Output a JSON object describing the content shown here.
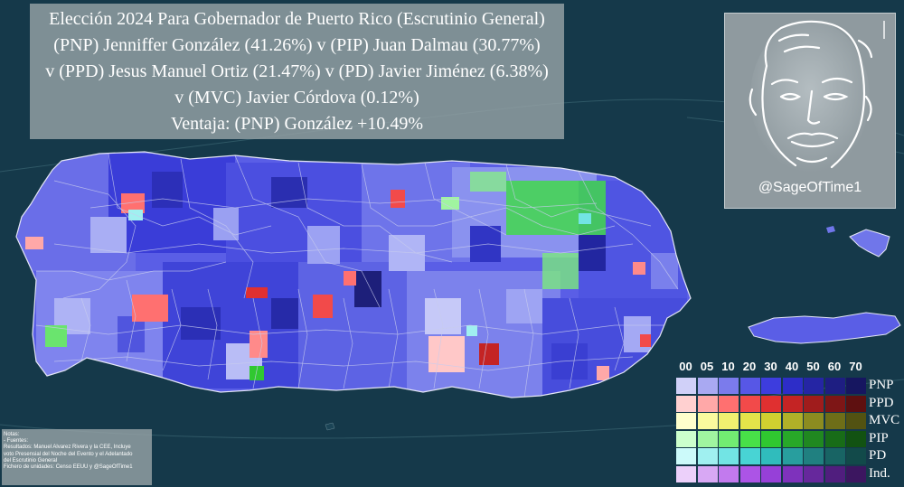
{
  "title": {
    "line1": "Elección 2024 Para Gobernador de Puerto Rico (Escrutinio General)",
    "line2": "(PNP) Jenniffer González (41.26%) v (PIP) Juan Dalmau (30.77%)",
    "line3": "v (PPD) Jesus Manuel Ortiz (21.47%) v (PD) Javier Jiménez (6.38%)",
    "line4": "v (MVC) Javier Córdova (0.12%)",
    "line5": "Ventaja: (PNP) González +10.49%"
  },
  "candidates": [
    {
      "party": "PNP",
      "name": "Jenniffer González",
      "percent": 41.26
    },
    {
      "party": "PIP",
      "name": "Juan Dalmau",
      "percent": 30.77
    },
    {
      "party": "PPD",
      "name": "Jesus Manuel Ortiz",
      "percent": 21.47
    },
    {
      "party": "PD",
      "name": "Javier Jiménez",
      "percent": 6.38
    },
    {
      "party": "MVC",
      "name": "Javier Córdova",
      "percent": 0.12
    }
  ],
  "margin": {
    "party": "PNP",
    "name": "González",
    "value": 10.49
  },
  "logo": {
    "handle": "@SageOfTime1"
  },
  "notes": {
    "lines": [
      "Notas:",
      "- Fuentes:",
      "Resultados: Manuel Alvarez Rivera y la CEE, Incluye",
      "voto Presensial del Noche del Evento y el Adelantado",
      "del Escrutinio General",
      "Fichero de unidades: Censo EEUU y @SageOfTime1"
    ]
  },
  "legend": {
    "thresholds": [
      "00",
      "05",
      "10",
      "20",
      "30",
      "40",
      "50",
      "60",
      "70"
    ],
    "rows": [
      {
        "label": "PNP",
        "colors": [
          "#d0d0f8",
          "#a9a9f2",
          "#7b7bec",
          "#5757e6",
          "#3d3dde",
          "#2d2dc8",
          "#2525a4",
          "#1e1e82",
          "#161660"
        ]
      },
      {
        "label": "PPD",
        "colors": [
          "#ffd0d0",
          "#ffa8a8",
          "#ff7070",
          "#f24a4a",
          "#e03030",
          "#c42424",
          "#a01c1c",
          "#7e1616",
          "#5e1010"
        ]
      },
      {
        "label": "MVC",
        "colors": [
          "#ffffcc",
          "#fafa9e",
          "#f0f070",
          "#e4e44a",
          "#d0d030",
          "#b0b028",
          "#8c8c20",
          "#6e6e18",
          "#525212"
        ]
      },
      {
        "label": "PIP",
        "colors": [
          "#ccffcc",
          "#a0f5a0",
          "#72ec72",
          "#48e048",
          "#30c830",
          "#28a828",
          "#208820",
          "#186c18",
          "#125212"
        ]
      },
      {
        "label": "PD",
        "colors": [
          "#ccfafa",
          "#a0f0f0",
          "#72e4e4",
          "#48d4d4",
          "#30bcbc",
          "#289e9e",
          "#208080",
          "#186464",
          "#124a4a"
        ]
      },
      {
        "label": "Ind.",
        "colors": [
          "#ecd0fa",
          "#d8a8f4",
          "#c27aee",
          "#ac54e6",
          "#9640d8",
          "#7e32bc",
          "#66289c",
          "#501e7e",
          "#3c1660"
        ]
      }
    ]
  }
}
